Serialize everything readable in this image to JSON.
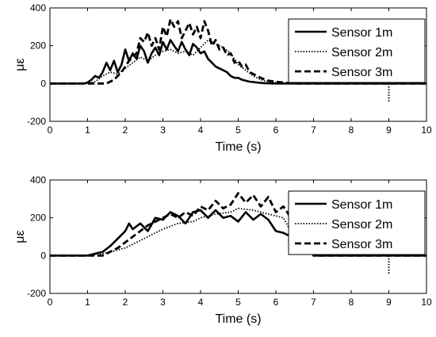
{
  "chart_data": [
    {
      "type": "line",
      "xlabel": "Time (s)",
      "ylabel": "με",
      "xlim": [
        0,
        10
      ],
      "ylim": [
        -200,
        400
      ],
      "xticks": [
        "0",
        "1",
        "2",
        "3",
        "4",
        "5",
        "6",
        "7",
        "8",
        "9",
        "10"
      ],
      "yticks": [
        "-200",
        "0",
        "200",
        "400"
      ],
      "legend_position": "top-right",
      "grid": false,
      "series": [
        {
          "name": "Sensor 1m",
          "style": "solid",
          "x": [
            0,
            0.9,
            1.0,
            1.1,
            1.2,
            1.3,
            1.4,
            1.5,
            1.6,
            1.7,
            1.8,
            1.9,
            2.0,
            2.1,
            2.2,
            2.3,
            2.4,
            2.5,
            2.6,
            2.7,
            2.8,
            2.9,
            3.0,
            3.1,
            3.2,
            3.3,
            3.4,
            3.5,
            3.6,
            3.7,
            3.8,
            3.9,
            4.0,
            4.1,
            4.2,
            4.3,
            4.4,
            4.5,
            4.6,
            4.7,
            4.8,
            4.9,
            5.0,
            5.1,
            5.2,
            5.3,
            5.4,
            5.5,
            5.6,
            5.7,
            5.8,
            5.9,
            6.0,
            6.2,
            6.4,
            7.0,
            8.0,
            9.0,
            10.0
          ],
          "values": [
            0,
            0,
            5,
            20,
            40,
            30,
            60,
            110,
            70,
            120,
            60,
            100,
            180,
            120,
            160,
            130,
            200,
            170,
            110,
            160,
            190,
            150,
            220,
            180,
            230,
            200,
            170,
            220,
            180,
            150,
            210,
            190,
            160,
            170,
            130,
            110,
            90,
            80,
            70,
            60,
            40,
            30,
            30,
            20,
            15,
            10,
            8,
            5,
            3,
            2,
            1,
            0,
            0,
            0,
            0,
            0,
            0,
            0,
            0
          ]
        },
        {
          "name": "Sensor 2m",
          "style": "dotted",
          "x": [
            0,
            1.0,
            1.2,
            1.4,
            1.6,
            1.8,
            2.0,
            2.2,
            2.4,
            2.6,
            2.8,
            3.0,
            3.2,
            3.4,
            3.6,
            3.8,
            4.0,
            4.2,
            4.4,
            4.6,
            4.8,
            5.0,
            5.2,
            5.4,
            5.6,
            5.8,
            6.0,
            6.2,
            6.5,
            7.0,
            8.0,
            10.0
          ],
          "values": [
            0,
            0,
            10,
            40,
            60,
            50,
            80,
            110,
            140,
            120,
            150,
            170,
            180,
            160,
            170,
            150,
            190,
            230,
            210,
            190,
            160,
            100,
            70,
            40,
            20,
            10,
            5,
            2,
            0,
            0,
            0,
            0
          ]
        },
        {
          "name": "Sensor 3m",
          "style": "dashed",
          "x": [
            0,
            1.5,
            1.7,
            1.9,
            2.1,
            2.3,
            2.4,
            2.5,
            2.6,
            2.7,
            2.8,
            2.9,
            3.0,
            3.1,
            3.2,
            3.3,
            3.4,
            3.5,
            3.6,
            3.7,
            3.8,
            3.9,
            4.0,
            4.1,
            4.2,
            4.3,
            4.4,
            4.5,
            4.6,
            4.7,
            4.8,
            4.9,
            5.0,
            5.1,
            5.2,
            5.3,
            5.4,
            5.6,
            5.8,
            6.0,
            6.2,
            6.5,
            7.0,
            8.0,
            10.0
          ],
          "values": [
            0,
            0,
            20,
            60,
            120,
            160,
            240,
            220,
            270,
            200,
            240,
            180,
            300,
            250,
            340,
            300,
            330,
            240,
            280,
            320,
            260,
            300,
            240,
            330,
            280,
            200,
            230,
            180,
            190,
            150,
            160,
            110,
            120,
            90,
            100,
            60,
            50,
            30,
            15,
            10,
            5,
            0,
            0,
            0,
            0
          ]
        }
      ],
      "annotations": [
        {
          "type": "dotted-marker",
          "x": 9,
          "y_range": [
            -100,
            0
          ]
        }
      ]
    },
    {
      "type": "line",
      "xlabel": "Time (s)",
      "ylabel": "με",
      "xlim": [
        0,
        10
      ],
      "ylim": [
        -200,
        400
      ],
      "xticks": [
        "0",
        "1",
        "2",
        "3",
        "4",
        "5",
        "6",
        "7",
        "8",
        "9",
        "10"
      ],
      "yticks": [
        "-200",
        "0",
        "200",
        "400"
      ],
      "legend_position": "top-right",
      "grid": false,
      "series": [
        {
          "name": "Sensor 1m",
          "style": "solid",
          "x": [
            0,
            1.0,
            1.2,
            1.4,
            1.6,
            1.8,
            2.0,
            2.1,
            2.2,
            2.4,
            2.6,
            2.8,
            3.0,
            3.2,
            3.4,
            3.6,
            3.8,
            4.0,
            4.2,
            4.4,
            4.6,
            4.8,
            5.0,
            5.2,
            5.4,
            5.6,
            5.8,
            6.0,
            6.2,
            6.4,
            6.6,
            6.8,
            7.0,
            10.0
          ],
          "values": [
            0,
            0,
            10,
            20,
            50,
            90,
            130,
            170,
            140,
            170,
            130,
            200,
            190,
            230,
            210,
            170,
            230,
            240,
            200,
            240,
            200,
            210,
            180,
            230,
            190,
            220,
            190,
            130,
            120,
            100,
            90,
            100,
            0,
            0
          ]
        },
        {
          "name": "Sensor 2m",
          "style": "dotted",
          "x": [
            0,
            1.0,
            1.4,
            1.8,
            2.0,
            2.4,
            2.8,
            3.0,
            3.4,
            3.8,
            4.0,
            4.4,
            4.8,
            5.0,
            5.4,
            5.8,
            6.0,
            6.2,
            6.5,
            7.0,
            10.0
          ],
          "values": [
            0,
            0,
            10,
            30,
            40,
            80,
            120,
            140,
            170,
            180,
            200,
            220,
            230,
            250,
            240,
            220,
            210,
            200,
            90,
            0,
            0
          ]
        },
        {
          "name": "Sensor 3m",
          "style": "dashed",
          "x": [
            0,
            1.4,
            1.8,
            2.2,
            2.6,
            3.0,
            3.2,
            3.4,
            3.6,
            3.8,
            4.0,
            4.2,
            4.4,
            4.6,
            4.8,
            5.0,
            5.2,
            5.4,
            5.6,
            5.8,
            6.0,
            6.2,
            6.5,
            7.0,
            10.0
          ],
          "values": [
            0,
            0,
            40,
            100,
            160,
            200,
            220,
            200,
            230,
            210,
            260,
            240,
            290,
            250,
            270,
            330,
            280,
            320,
            260,
            310,
            230,
            260,
            170,
            0,
            0
          ]
        }
      ],
      "annotations": [
        {
          "type": "dotted-marker",
          "x": 9,
          "y_range": [
            -100,
            0
          ]
        }
      ]
    }
  ]
}
